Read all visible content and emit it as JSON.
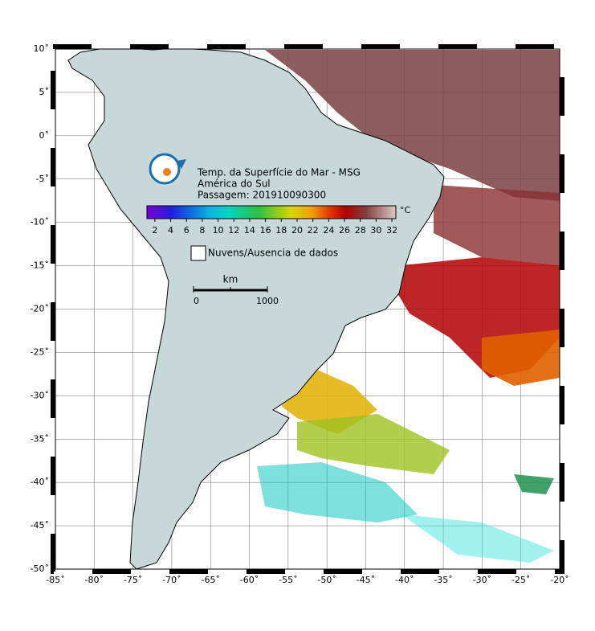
{
  "map": {
    "title": "Temp. da Superfície do Mar - MSG",
    "region": "América do Sul",
    "pass": "Passagem: 201910090300",
    "xlim": [
      -85,
      -20
    ],
    "ylim": [
      -50,
      10
    ],
    "grid": true,
    "xticks": [
      {
        "value": -85,
        "label": "-85˚"
      },
      {
        "value": -80,
        "label": "-80˚"
      },
      {
        "value": -75,
        "label": "-75˚"
      },
      {
        "value": -70,
        "label": "-70˚"
      },
      {
        "value": -65,
        "label": "-65˚"
      },
      {
        "value": -60,
        "label": "-60˚"
      },
      {
        "value": -55,
        "label": "-55˚"
      },
      {
        "value": -50,
        "label": "-50˚"
      },
      {
        "value": -45,
        "label": "-45˚"
      },
      {
        "value": -40,
        "label": "-40˚"
      },
      {
        "value": -35,
        "label": "-35˚"
      },
      {
        "value": -30,
        "label": "-30˚"
      },
      {
        "value": -25,
        "label": "-25˚"
      },
      {
        "value": -20,
        "label": "-20˚"
      }
    ],
    "yticks": [
      {
        "value": 10,
        "label": "10˚"
      },
      {
        "value": 5,
        "label": "5˚"
      },
      {
        "value": 0,
        "label": "0˚"
      },
      {
        "value": -5,
        "label": "-5˚"
      },
      {
        "value": -10,
        "label": "-10˚"
      },
      {
        "value": -15,
        "label": "-15˚"
      },
      {
        "value": -20,
        "label": "-20˚"
      },
      {
        "value": -25,
        "label": "-25˚"
      },
      {
        "value": -30,
        "label": "-30˚"
      },
      {
        "value": -35,
        "label": "-35˚"
      },
      {
        "value": -40,
        "label": "-40˚"
      },
      {
        "value": -45,
        "label": "-45˚"
      },
      {
        "value": -50,
        "label": "-50˚"
      }
    ],
    "colorbar": {
      "unit": "°C",
      "lim": [
        1,
        32.5
      ],
      "ticks": [
        2,
        4,
        6,
        8,
        10,
        12,
        14,
        16,
        18,
        20,
        22,
        24,
        26,
        28,
        30,
        32
      ]
    },
    "legend": "Nuvens/Ausencia de dados",
    "scale": {
      "unit": "km",
      "ticks": [
        0,
        1000
      ]
    }
  }
}
